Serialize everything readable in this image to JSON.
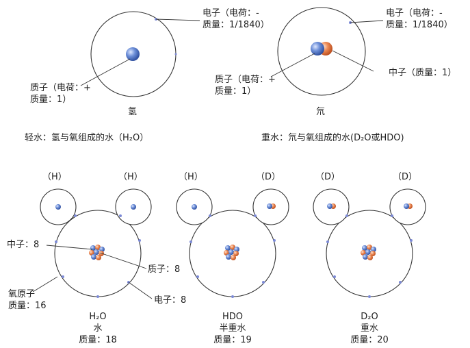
{
  "top": {
    "hydrogen": {
      "electron_label": [
        "电子（电荷：-",
        "质量：1/1840）"
      ],
      "proton_label": [
        "质子（电荷：+",
        "质量：1）"
      ],
      "name": "氢"
    },
    "deuterium": {
      "electron_label": [
        "电子（电荷：-",
        "质量：1/1840）"
      ],
      "proton_label": [
        "质子（电荷：+",
        "质量：1）"
      ],
      "neutron_label": "中子（质量：1）",
      "name": "氘"
    },
    "light_water": "轻水：氢与氧组成的水（H₂O）",
    "heavy_water": "重水：氘与氧组成的水(D₂O或HDO)"
  },
  "molecules": [
    {
      "left_atom": "（H）",
      "right_atom": "（H）",
      "formula": "H₂O",
      "name": "水",
      "mass": "质量：18"
    },
    {
      "left_atom": "（H）",
      "right_atom": "（D）",
      "formula": "HDO",
      "name": "半重水",
      "mass": "质量：19"
    },
    {
      "left_atom": "（D）",
      "right_atom": "（D）",
      "formula": "D₂O",
      "name": "重水",
      "mass": "质量：20"
    }
  ],
  "oxygen_labels": {
    "neutron": "中子：8",
    "proton": "质子：8",
    "atom": [
      "氧原子",
      "质量：16"
    ],
    "electron": "电子：8"
  },
  "colors": {
    "proton": "#4a6fc0",
    "neutron": "#e0703a",
    "orbit": "#333333",
    "electron": "#7c8ad6"
  }
}
